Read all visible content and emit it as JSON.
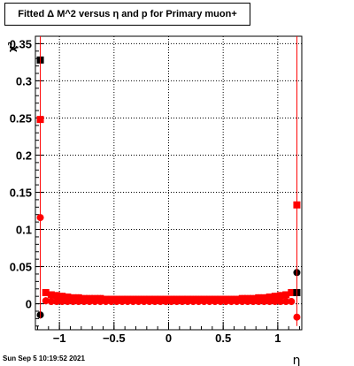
{
  "title": "Fitted Δ M^2 versus η and p for Primary muon+",
  "timestamp": "Sun Sep  5 10:19:52 2021",
  "chart_data": {
    "type": "scatter",
    "xlabel": "η",
    "ylabel": "χ²",
    "xlim": [
      -1.22,
      1.22
    ],
    "ylim": [
      -0.035,
      0.36
    ],
    "xticks": [
      -1,
      -0.5,
      0,
      0.5,
      1
    ],
    "xtick_labels": [
      "−1",
      "−0.5",
      "0",
      "0.5",
      "1"
    ],
    "yticks": [
      0,
      0.05,
      0.1,
      0.15,
      0.2,
      0.25,
      0.3,
      0.35
    ],
    "ytick_labels": [
      "0",
      "0.05",
      "0.1",
      "0.15",
      "0.2",
      "0.25",
      "0.3",
      "0.35"
    ],
    "grid": true,
    "series": [
      {
        "color": "#ff0000",
        "marker": "square",
        "x": [
          -1.175,
          -1.125,
          -1.075,
          -1.025,
          -0.975,
          -0.925,
          -0.875,
          -0.825,
          -0.775,
          -0.725,
          -0.675,
          -0.625,
          -0.575,
          -0.525,
          -0.475,
          -0.425,
          -0.375,
          -0.325,
          -0.275,
          -0.225,
          -0.175,
          -0.125,
          -0.075,
          -0.025,
          0.025,
          0.075,
          0.125,
          0.175,
          0.225,
          0.275,
          0.325,
          0.375,
          0.425,
          0.475,
          0.525,
          0.575,
          0.625,
          0.675,
          0.725,
          0.775,
          0.825,
          0.875,
          0.925,
          0.975,
          1.025,
          1.075,
          1.125,
          1.175
        ],
        "y": [
          0.248,
          0.015,
          0.012,
          0.011,
          0.01,
          0.009,
          0.008,
          0.008,
          0.007,
          0.007,
          0.007,
          0.007,
          0.006,
          0.006,
          0.006,
          0.006,
          0.006,
          0.006,
          0.006,
          0.006,
          0.006,
          0.006,
          0.006,
          0.006,
          0.006,
          0.006,
          0.006,
          0.006,
          0.006,
          0.006,
          0.006,
          0.006,
          0.006,
          0.006,
          0.006,
          0.006,
          0.006,
          0.007,
          0.007,
          0.007,
          0.008,
          0.008,
          0.009,
          0.01,
          0.011,
          0.012,
          0.015,
          0.133
        ]
      },
      {
        "color": "#ff0000",
        "marker": "circle",
        "x": [
          -1.175,
          -1.125,
          -1.075,
          -1.025,
          -0.975,
          -0.925,
          -0.875,
          -0.825,
          -0.775,
          -0.725,
          -0.675,
          -0.625,
          -0.575,
          -0.525,
          -0.475,
          -0.425,
          -0.375,
          -0.325,
          -0.275,
          -0.225,
          -0.175,
          -0.125,
          -0.075,
          -0.025,
          0.025,
          0.075,
          0.125,
          0.175,
          0.225,
          0.275,
          0.325,
          0.375,
          0.425,
          0.475,
          0.525,
          0.575,
          0.625,
          0.675,
          0.725,
          0.775,
          0.825,
          0.875,
          0.925,
          0.975,
          1.025,
          1.075,
          1.125,
          1.175
        ],
        "y": [
          0.116,
          0.004,
          0.003,
          0.003,
          0.003,
          0.003,
          0.003,
          0.003,
          0.003,
          0.003,
          0.003,
          0.003,
          0.003,
          0.003,
          0.003,
          0.003,
          0.003,
          0.003,
          0.003,
          0.003,
          0.003,
          0.003,
          0.003,
          0.003,
          0.003,
          0.003,
          0.003,
          0.003,
          0.003,
          0.003,
          0.003,
          0.003,
          0.003,
          0.003,
          0.003,
          0.003,
          0.003,
          0.003,
          0.003,
          0.003,
          0.003,
          0.003,
          0.003,
          0.003,
          0.003,
          0.003,
          0.003,
          -0.018
        ]
      },
      {
        "color": "#000000",
        "marker": "square",
        "x": [
          -1.175,
          1.175
        ],
        "y": [
          0.328,
          0.015
        ]
      },
      {
        "color": "#000000",
        "marker": "circle",
        "x": [
          -1.175,
          1.175
        ],
        "y": [
          -0.015,
          0.042
        ]
      }
    ]
  }
}
